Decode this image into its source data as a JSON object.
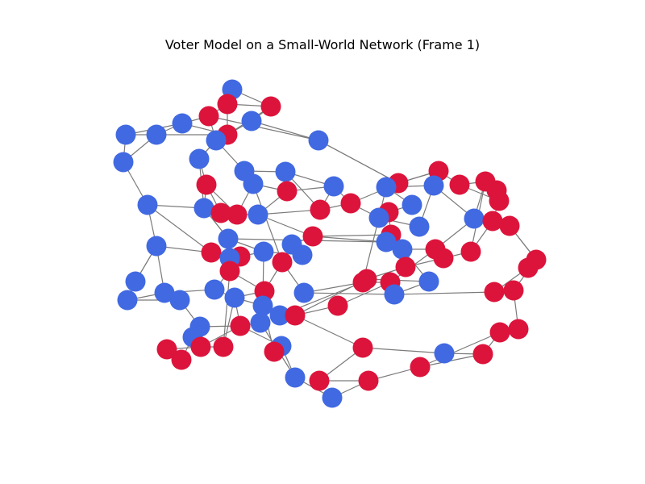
{
  "title": "Voter Model on a Small-World Network (Frame 1)",
  "colors": {
    "opinion_a": "#4169E1",
    "opinion_b": "#DC143C",
    "edge": "#7a7a7a"
  },
  "network": {
    "node_count": 94,
    "opinion_a_count": 47,
    "opinion_b_count": 47
  }
}
